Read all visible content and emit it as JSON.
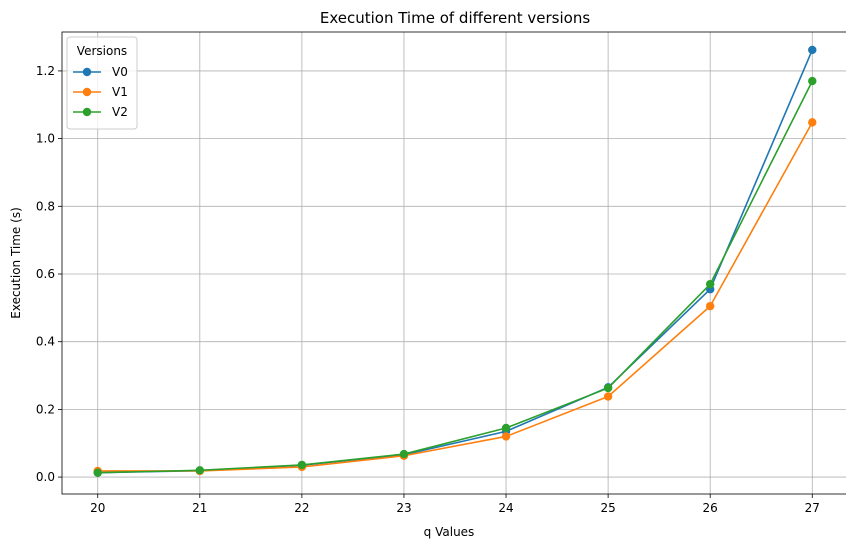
{
  "chart_data": {
    "type": "line",
    "title": "Execution Time of different versions",
    "xlabel": "q Values",
    "ylabel": "Execution Time (s)",
    "x": [
      20,
      21,
      22,
      23,
      24,
      25,
      26,
      27
    ],
    "xlim": [
      19.65,
      27.35
    ],
    "ylim": [
      -0.05,
      1.315
    ],
    "xticks": [
      "20",
      "21",
      "22",
      "23",
      "24",
      "25",
      "26",
      "27"
    ],
    "yticks": [
      "0.0",
      "0.2",
      "0.4",
      "0.6",
      "0.8",
      "1.0",
      "1.2"
    ],
    "grid": true,
    "legend": {
      "title": "Versions",
      "position": "top-left"
    },
    "series": [
      {
        "name": "V0",
        "color": "#1f77b4",
        "values": [
          0.013,
          0.019,
          0.035,
          0.066,
          0.135,
          0.265,
          0.555,
          1.262
        ]
      },
      {
        "name": "V1",
        "color": "#ff7f0e",
        "values": [
          0.018,
          0.018,
          0.03,
          0.063,
          0.12,
          0.238,
          0.505,
          1.048
        ]
      },
      {
        "name": "V2",
        "color": "#2ca02c",
        "values": [
          0.013,
          0.02,
          0.036,
          0.068,
          0.145,
          0.263,
          0.57,
          1.17
        ]
      }
    ]
  }
}
